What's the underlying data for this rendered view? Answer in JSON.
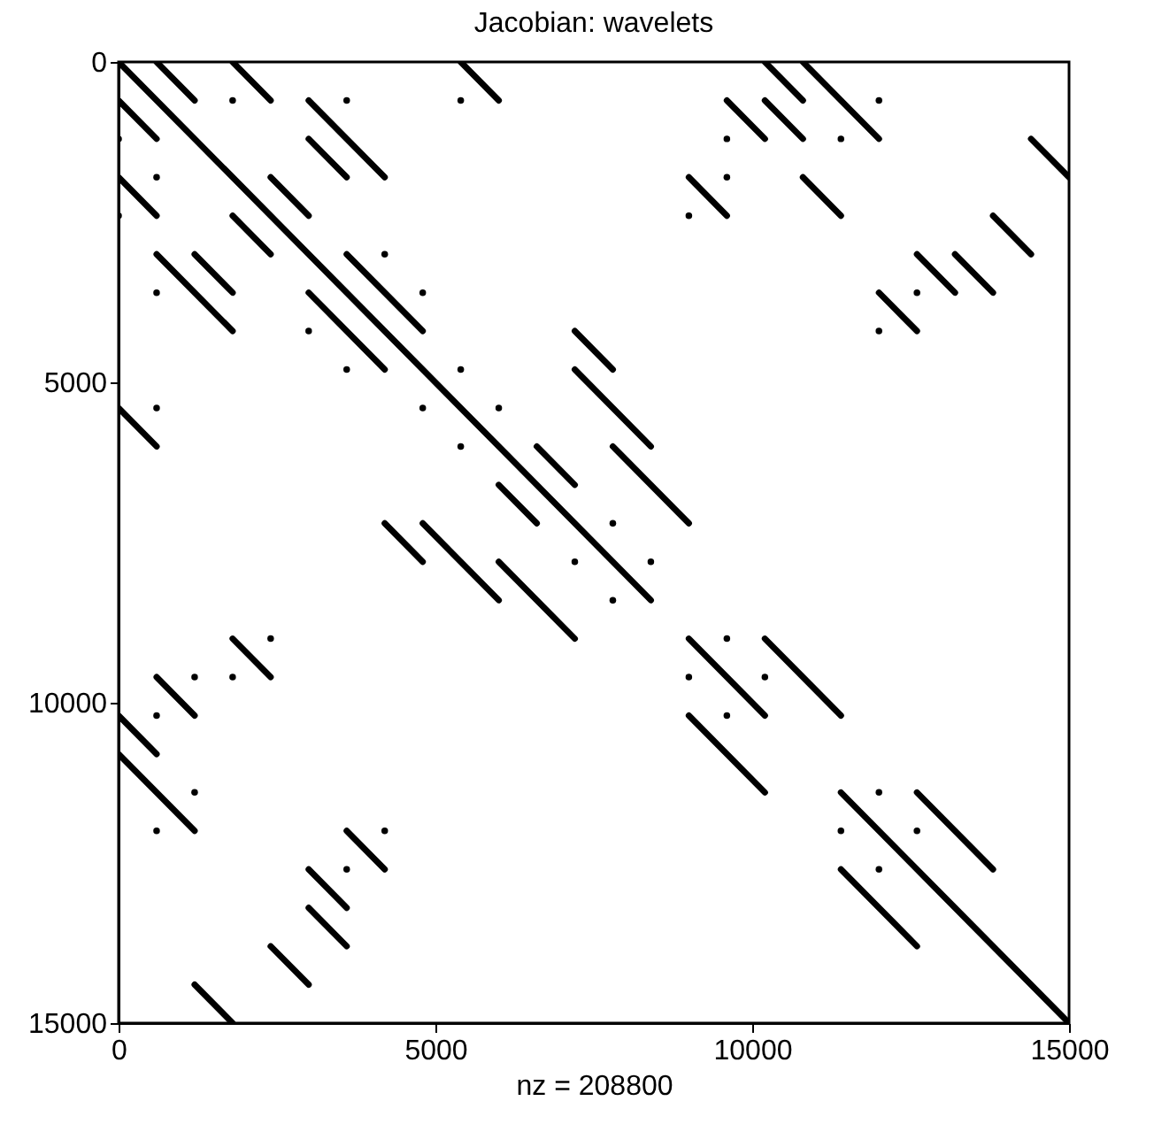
{
  "chart_data": {
    "type": "line",
    "title": "Jacobian: wavelets",
    "xlabel": "nz = 208800",
    "xlim": [
      0,
      15000
    ],
    "ylim": [
      15000,
      0
    ],
    "xticks": [
      0,
      5000,
      10000,
      15000
    ],
    "yticks": [
      0,
      5000,
      10000,
      15000
    ],
    "grid": false,
    "legend": false,
    "series": [
      {
        "color": "#000000",
        "x": [
          0,
          8400
        ],
        "values": [
          0,
          8400
        ]
      },
      {
        "color": "#000000",
        "x": [
          9000,
          10200
        ],
        "values": [
          9000,
          10200
        ]
      },
      {
        "color": "#000000",
        "x": [
          11400,
          15000
        ],
        "values": [
          11400,
          15000
        ]
      },
      {
        "type": "line",
        "color": "#000000",
        "x": [
          600,
          1200
        ],
        "values": [
          0,
          600
        ]
      },
      {
        "type": "line",
        "color": "#000000",
        "x": [
          1800,
          2400
        ],
        "values": [
          0,
          600
        ]
      },
      {
        "type": "line",
        "color": "#000000",
        "x": [
          0,
          600
        ],
        "values": [
          600,
          1200
        ]
      },
      {
        "type": "line",
        "color": "#000000",
        "x": [
          3000,
          4200
        ],
        "values": [
          600,
          1800
        ]
      },
      {
        "type": "line",
        "color": "#000000",
        "x": [
          3000,
          3600
        ],
        "values": [
          1200,
          1800
        ]
      },
      {
        "type": "line",
        "color": "#000000",
        "x": [
          0,
          600
        ],
        "values": [
          1800,
          2400
        ]
      },
      {
        "type": "line",
        "color": "#000000",
        "x": [
          2400,
          3000
        ],
        "values": [
          1800,
          2400
        ]
      },
      {
        "type": "line",
        "color": "#000000",
        "x": [
          1800,
          2400
        ],
        "values": [
          2400,
          3000
        ]
      },
      {
        "type": "line",
        "color": "#000000",
        "x": [
          600,
          1800
        ],
        "values": [
          3000,
          4200
        ]
      },
      {
        "type": "line",
        "color": "#000000",
        "x": [
          1200,
          1800
        ],
        "values": [
          3000,
          3600
        ]
      },
      {
        "type": "line",
        "color": "#000000",
        "x": [
          3600,
          4800
        ],
        "values": [
          3000,
          4200
        ]
      },
      {
        "type": "line",
        "color": "#000000",
        "x": [
          3000,
          4200
        ],
        "values": [
          3600,
          4800
        ]
      },
      {
        "type": "line",
        "color": "#000000",
        "x": [
          5400,
          6000
        ],
        "values": [
          0,
          600
        ]
      },
      {
        "type": "line",
        "color": "#000000",
        "x": [
          10200,
          10800
        ],
        "values": [
          0,
          600
        ]
      },
      {
        "type": "line",
        "color": "#000000",
        "x": [
          10800,
          12000
        ],
        "values": [
          0,
          1200
        ]
      },
      {
        "type": "line",
        "color": "#000000",
        "x": [
          9600,
          10200
        ],
        "values": [
          600,
          1200
        ]
      },
      {
        "type": "line",
        "color": "#000000",
        "x": [
          10200,
          10800
        ],
        "values": [
          600,
          1200
        ]
      },
      {
        "type": "line",
        "color": "#000000",
        "x": [
          9000,
          9600
        ],
        "values": [
          1800,
          2400
        ]
      },
      {
        "type": "line",
        "color": "#000000",
        "x": [
          10800,
          11400
        ],
        "values": [
          1800,
          2400
        ]
      },
      {
        "type": "line",
        "color": "#000000",
        "x": [
          7200,
          7800
        ],
        "values": [
          4200,
          4800
        ]
      },
      {
        "type": "line",
        "color": "#000000",
        "x": [
          7200,
          8400
        ],
        "values": [
          4800,
          6000
        ]
      },
      {
        "type": "line",
        "color": "#000000",
        "x": [
          0,
          600
        ],
        "values": [
          5400,
          6000
        ]
      },
      {
        "type": "line",
        "color": "#000000",
        "x": [
          4200,
          4800
        ],
        "values": [
          7200,
          7800
        ]
      },
      {
        "type": "line",
        "color": "#000000",
        "x": [
          4800,
          6000
        ],
        "values": [
          7200,
          8400
        ]
      },
      {
        "type": "line",
        "color": "#000000",
        "x": [
          1800,
          2400
        ],
        "values": [
          9000,
          9600
        ]
      },
      {
        "type": "line",
        "color": "#000000",
        "x": [
          600,
          1200
        ],
        "values": [
          9600,
          10200
        ]
      },
      {
        "type": "line",
        "color": "#000000",
        "x": [
          0,
          600
        ],
        "values": [
          10200,
          10800
        ]
      },
      {
        "type": "line",
        "color": "#000000",
        "x": [
          6600,
          7200
        ],
        "values": [
          6000,
          6600
        ]
      },
      {
        "type": "line",
        "color": "#000000",
        "x": [
          7800,
          9000
        ],
        "values": [
          6000,
          7200
        ]
      },
      {
        "type": "line",
        "color": "#000000",
        "x": [
          6000,
          6600
        ],
        "values": [
          6600,
          7200
        ]
      },
      {
        "type": "line",
        "color": "#000000",
        "x": [
          6000,
          7200
        ],
        "values": [
          7800,
          9000
        ]
      },
      {
        "type": "line",
        "color": "#000000",
        "x": [
          10200,
          11400
        ],
        "values": [
          9000,
          10200
        ]
      },
      {
        "type": "line",
        "color": "#000000",
        "x": [
          9000,
          10200
        ],
        "values": [
          10200,
          11400
        ]
      },
      {
        "type": "line",
        "color": "#000000",
        "x": [
          0,
          1200
        ],
        "values": [
          10800,
          12000
        ]
      },
      {
        "type": "line",
        "color": "#000000",
        "x": [
          3600,
          4200
        ],
        "values": [
          12000,
          12600
        ]
      },
      {
        "type": "line",
        "color": "#000000",
        "x": [
          3000,
          3600
        ],
        "values": [
          12600,
          13200
        ]
      },
      {
        "type": "line",
        "color": "#000000",
        "x": [
          3000,
          3600
        ],
        "values": [
          13200,
          13800
        ]
      },
      {
        "type": "line",
        "color": "#000000",
        "x": [
          2400,
          3000
        ],
        "values": [
          13800,
          14400
        ]
      },
      {
        "type": "line",
        "color": "#000000",
        "x": [
          1200,
          1800
        ],
        "values": [
          14400,
          15000
        ]
      },
      {
        "type": "line",
        "color": "#000000",
        "x": [
          11400,
          12600
        ],
        "values": [
          12600,
          13800
        ]
      },
      {
        "type": "line",
        "color": "#000000",
        "x": [
          12600,
          13800
        ],
        "values": [
          11400,
          12600
        ]
      },
      {
        "type": "line",
        "color": "#000000",
        "x": [
          12000,
          12600
        ],
        "values": [
          3600,
          4200
        ]
      },
      {
        "type": "line",
        "color": "#000000",
        "x": [
          12600,
          13200
        ],
        "values": [
          3000,
          3600
        ]
      },
      {
        "type": "line",
        "color": "#000000",
        "x": [
          13200,
          13800
        ],
        "values": [
          3000,
          3600
        ]
      },
      {
        "type": "line",
        "color": "#000000",
        "x": [
          13800,
          14400
        ],
        "values": [
          2400,
          3000
        ]
      },
      {
        "type": "line",
        "color": "#000000",
        "x": [
          14400,
          15000
        ],
        "values": [
          1200,
          1800
        ]
      },
      {
        "type": "scatter",
        "color": "#000000",
        "marker": "circle",
        "x": [
          1800,
          3600,
          5400,
          0,
          600,
          0,
          4200,
          600,
          4800,
          3000,
          3600,
          5400,
          600,
          4800,
          5400,
          1200,
          1800,
          2400,
          600,
          6000,
          7800,
          7200,
          8400,
          7800,
          9600,
          9000,
          10200,
          9600,
          9600,
          11400,
          12000,
          9600,
          9000,
          12000,
          1200,
          600,
          4200,
          3600,
          12000,
          11400,
          12000,
          12600,
          12600
        ],
        "values": [
          600,
          600,
          600,
          1200,
          1800,
          2400,
          3000,
          3600,
          3600,
          4200,
          4800,
          4800,
          5400,
          5400,
          6000,
          9600,
          9600,
          9000,
          10200,
          5400,
          7200,
          7800,
          7800,
          8400,
          9000,
          9600,
          9600,
          10200,
          1200,
          1200,
          600,
          1800,
          2400,
          4200,
          11400,
          12000,
          12000,
          12600,
          11400,
          12000,
          12600,
          3600,
          12000
        ]
      }
    ]
  }
}
